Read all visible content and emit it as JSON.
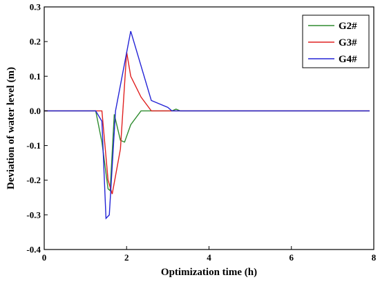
{
  "chart_data": {
    "type": "line",
    "title": "",
    "xlabel": "Optimization time (h)",
    "ylabel": "Deviation of water level (m)",
    "xlim": [
      0,
      8
    ],
    "ylim": [
      -0.4,
      0.3
    ],
    "xticks": [
      0,
      2,
      4,
      6,
      8
    ],
    "yticks": [
      -0.4,
      -0.3,
      -0.2,
      -0.1,
      0.0,
      0.1,
      0.2,
      0.3
    ],
    "ytick_labels": [
      "-0.4",
      "-0.3",
      "-0.2",
      "-0.1",
      "0.0",
      "0.1",
      "0.2",
      "0.3"
    ],
    "grid": false,
    "legend_position": "top-right",
    "series": [
      {
        "name": "G2#",
        "color": "#2e8b2e",
        "points": [
          [
            0,
            0
          ],
          [
            1.25,
            0
          ],
          [
            1.4,
            -0.09
          ],
          [
            1.55,
            -0.225
          ],
          [
            1.6,
            -0.23
          ],
          [
            1.7,
            -0.01
          ],
          [
            1.85,
            -0.085
          ],
          [
            1.95,
            -0.09
          ],
          [
            2.1,
            -0.04
          ],
          [
            2.35,
            0
          ],
          [
            3.1,
            0
          ],
          [
            3.2,
            0.005
          ],
          [
            3.3,
            0
          ],
          [
            7.9,
            0
          ]
        ]
      },
      {
        "name": "G3#",
        "color": "#e02020",
        "points": [
          [
            0,
            0
          ],
          [
            1.4,
            0
          ],
          [
            1.55,
            -0.2
          ],
          [
            1.65,
            -0.24
          ],
          [
            1.85,
            -0.11
          ],
          [
            2.0,
            0.17
          ],
          [
            2.1,
            0.1
          ],
          [
            2.35,
            0.04
          ],
          [
            2.6,
            0
          ],
          [
            7.9,
            0
          ]
        ]
      },
      {
        "name": "G4#",
        "color": "#2323d6",
        "points": [
          [
            0,
            0
          ],
          [
            1.25,
            0
          ],
          [
            1.4,
            -0.03
          ],
          [
            1.5,
            -0.31
          ],
          [
            1.58,
            -0.3
          ],
          [
            1.73,
            0
          ],
          [
            2.1,
            0.23
          ],
          [
            2.6,
            0.03
          ],
          [
            3.0,
            0.01
          ],
          [
            3.1,
            0
          ],
          [
            7.9,
            0
          ]
        ]
      }
    ]
  }
}
